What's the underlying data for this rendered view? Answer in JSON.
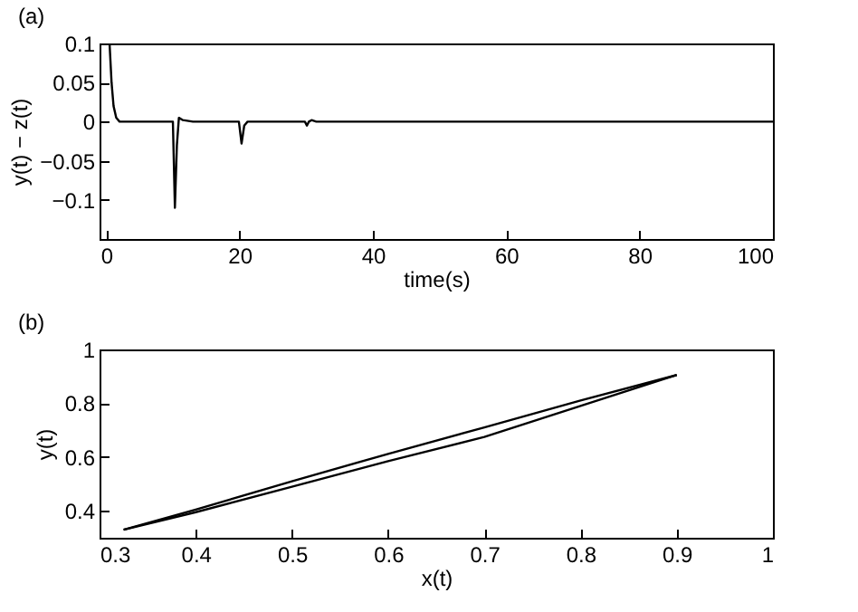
{
  "chart_data": [
    {
      "type": "line",
      "title": "(a)",
      "xlabel": "time(s)",
      "ylabel": "y(t) − z(t)",
      "xlim": [
        -1,
        100
      ],
      "ylim": [
        -0.15,
        0.1
      ],
      "xticks": [
        0,
        20,
        40,
        60,
        80,
        100
      ],
      "yticks": [
        -0.1,
        -0.05,
        0,
        0.05,
        0.1
      ],
      "series": [
        {
          "color": "#000000",
          "x": [
            0,
            0.5,
            0.8,
            1.1,
            1.5,
            2,
            5,
            10,
            10.3,
            10.6,
            10.9,
            11.5,
            13,
            19.9,
            20.3,
            20.7,
            21.2,
            22,
            29.8,
            30.1,
            30.4,
            30.8,
            31.5,
            40,
            60,
            80,
            100
          ],
          "values": [
            0.1,
            0.1,
            0.05,
            0.02,
            0.005,
            0,
            0,
            0,
            -0.11,
            -0.03,
            0.005,
            0.002,
            0,
            0,
            -0.028,
            -0.005,
            0,
            0,
            0,
            -0.005,
            0,
            0.002,
            0,
            0,
            0,
            0,
            0
          ]
        }
      ]
    },
    {
      "type": "line",
      "title": "(b)",
      "xlabel": "x(t)",
      "ylabel": "y(t)",
      "xlim": [
        0.3,
        1
      ],
      "ylim": [
        0.3,
        1
      ],
      "xticks": [
        0.3,
        0.4,
        0.5,
        0.6,
        0.7,
        0.8,
        0.9,
        1
      ],
      "yticks": [
        0.4,
        0.6,
        0.8,
        1
      ],
      "series": [
        {
          "color": "#000000",
          "x": [
            0.325,
            0.4,
            0.5,
            0.6,
            0.7,
            0.8,
            0.9
          ],
          "values": [
            0.33,
            0.405,
            0.51,
            0.612,
            0.71,
            0.81,
            0.905
          ]
        },
        {
          "color": "#000000",
          "x": [
            0.325,
            0.4,
            0.5,
            0.6,
            0.7,
            0.8,
            0.9
          ],
          "values": [
            0.33,
            0.395,
            0.49,
            0.585,
            0.675,
            0.79,
            0.905
          ]
        }
      ]
    }
  ]
}
